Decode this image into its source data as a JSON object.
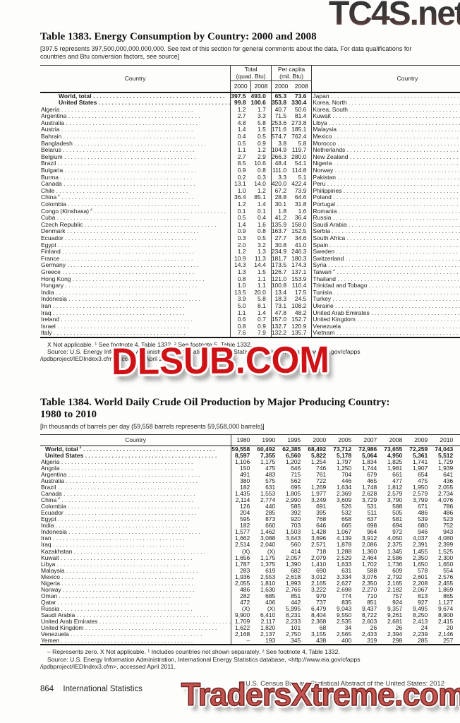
{
  "watermarks": {
    "top": "TC4S.net",
    "middle": "DLSUB.COM",
    "bottom": "TradersXtreme.com",
    "red": "#cf1216",
    "salmon": "#c4544f"
  },
  "t1383": {
    "title": "Table 1383. Energy Consumption by Country: 2000 and 2008",
    "note": "[397.5 represents 397,500,000,000,000,000. See text of this section for general comments about the data. For data qualifications for countries and Btu conversion factors, see source]",
    "headers": {
      "country": "Country",
      "total": [
        "Total",
        "(quad. Btu)"
      ],
      "per_capita": [
        "Per capita",
        "(mil. Btu)"
      ],
      "years": [
        "2000",
        "2008"
      ]
    },
    "left_rows": [
      {
        "n": "World, total",
        "b": true,
        "v": [
          "397.5",
          "493.0",
          "65.3",
          "73.6"
        ]
      },
      {
        "n": "United States",
        "b": true,
        "v": [
          "99.8",
          "100.6",
          "353.8",
          "330.4"
        ]
      },
      {
        "n": "Algeria",
        "v": [
          "1.2",
          "1.7",
          "40.7",
          "50.6"
        ]
      },
      {
        "n": "Argentina",
        "v": [
          "2.7",
          "3.3",
          "71.5",
          "81.4"
        ]
      },
      {
        "n": "Australia",
        "v": [
          "4.8",
          "5.8",
          "253.6",
          "273.8"
        ]
      },
      {
        "n": "Austria",
        "v": [
          "1.4",
          "1.5",
          "171.6",
          "185.1"
        ]
      },
      {
        "n": "Bahrain",
        "v": [
          "0.4",
          "0.5",
          "574.7",
          "762.4"
        ]
      },
      {
        "n": "Bangladesh",
        "v": [
          "0.5",
          "0.9",
          "3.8",
          "5.8"
        ]
      },
      {
        "n": "Belarus",
        "v": [
          "1.1",
          "1.2",
          "104.9",
          "119.7"
        ]
      },
      {
        "n": "Belgium",
        "v": [
          "2.7",
          "2.9",
          "266.3",
          "280.0"
        ]
      },
      {
        "n": "Brazil",
        "v": [
          "8.5",
          "10.6",
          "48.4",
          "54.1"
        ]
      },
      {
        "n": "Bulgaria",
        "v": [
          "0.9",
          "0.8",
          "111.0",
          "114.8"
        ]
      },
      {
        "n": "Burma",
        "v": [
          "0.2",
          "0.3",
          "3.3",
          "5.1"
        ]
      },
      {
        "n": "Canada",
        "v": [
          "13.1",
          "14.0",
          "420.0",
          "422.4"
        ]
      },
      {
        "n": "Chile",
        "v": [
          "1.0",
          "1.2",
          "67.2",
          "73.9"
        ]
      },
      {
        "n": "China",
        "s": "1",
        "v": [
          "36.4",
          "85.1",
          "28.8",
          "64.6"
        ]
      },
      {
        "n": "Colombia",
        "v": [
          "1.2",
          "1.4",
          "30.1",
          "31.8"
        ]
      },
      {
        "n": "Congo (Kinshasa)",
        "s": "2",
        "v": [
          "0.1",
          "0.1",
          "1.8",
          "1.6"
        ]
      },
      {
        "n": "Cuba",
        "v": [
          "0.5",
          "0.4",
          "41.2",
          "36.4"
        ]
      },
      {
        "n": "Czech Republic",
        "v": [
          "1.4",
          "1.6",
          "135.9",
          "158.0"
        ]
      },
      {
        "n": "Denmark",
        "v": [
          "0.9",
          "0.8",
          "163.7",
          "152.5"
        ]
      },
      {
        "n": "Ecuador",
        "v": [
          "0.3",
          "0.5",
          "27.7",
          "34.6"
        ]
      },
      {
        "n": "Egypt",
        "v": [
          "2.0",
          "3.2",
          "30.8",
          "41.0"
        ]
      },
      {
        "n": "Finland",
        "v": [
          "1.2",
          "1.3",
          "234.9",
          "246.3"
        ]
      },
      {
        "n": "France",
        "v": [
          "10.9",
          "11.3",
          "181.7",
          "180.3"
        ]
      },
      {
        "n": "Germany",
        "v": [
          "14.3",
          "14.4",
          "173.5",
          "174.3"
        ]
      },
      {
        "n": "Greece",
        "v": [
          "1.3",
          "1.5",
          "126.7",
          "137.1"
        ]
      },
      {
        "n": "Hong Kong",
        "v": [
          "0.8",
          "1.1",
          "121.0",
          "153.9"
        ]
      },
      {
        "n": "Hungary",
        "v": [
          "1.0",
          "1.1",
          "100.8",
          "110.4"
        ]
      },
      {
        "n": "India",
        "v": [
          "13.5",
          "20.0",
          "13.4",
          "17.5"
        ]
      },
      {
        "n": "Indonesia",
        "v": [
          "3.9",
          "5.8",
          "18.3",
          "24.5"
        ]
      },
      {
        "n": "Iran",
        "v": [
          "5.0",
          "8.1",
          "73.1",
          "108.2"
        ]
      },
      {
        "n": "Iraq",
        "v": [
          "1.1",
          "1.4",
          "47.8",
          "48.2"
        ]
      },
      {
        "n": "Ireland",
        "v": [
          "0.6",
          "0.7",
          "157.0",
          "152.7"
        ]
      },
      {
        "n": "Israel",
        "v": [
          "0.8",
          "0.9",
          "132.7",
          "120.9"
        ]
      },
      {
        "n": "Italy",
        "v": [
          "7.6",
          "7.9",
          "132.2",
          "135.7"
        ]
      }
    ],
    "right_rows": [
      {
        "n": "Japan",
        "v": [
          "22.4",
          "21.9",
          "177.0",
          "171.8"
        ]
      },
      {
        "n": "Korea, North",
        "v": [
          "0.9",
          "0.9",
          "40.4",
          "39.2"
        ]
      },
      {
        "n": "Korea, South",
        "v": [
          "7.8",
          "9.9",
          "167.4",
          "204.3"
        ]
      },
      {
        "n": "Kuwait",
        "v": [
          "0.9",
          "1.2",
          "460.8",
          "459.2"
        ]
      },
      {
        "n": "Libya",
        "v": [
          "0.6",
          "0.8",
          "122.9",
          "126.7"
        ]
      },
      {
        "n": "Malaysia",
        "v": [
          "2.0",
          "2.5",
          "85.4",
          "89.6"
        ]
      },
      {
        "n": "Mexico",
        "v": [
          "6.4",
          "7.3",
          "63.8",
          "66.5"
        ]
      },
      {
        "n": "Morocco",
        "v": [
          "0.4",
          "0.6",
          "15.9",
          "18.1"
        ]
      },
      {
        "n": "Netherlands",
        "v": [
          "3.8",
          "4.1",
          "238.5",
          "248.6"
        ]
      },
      {
        "n": "New Zealand",
        "v": [
          "0.8",
          "0.9",
          "223.2",
          "211.5"
        ]
      },
      {
        "n": "Nigeria",
        "v": [
          "0.8",
          "1.1",
          "6.6",
          "7.4"
        ]
      },
      {
        "n": "Norway",
        "v": [
          "2.0",
          "1.9",
          "436.1",
          "418.4"
        ]
      },
      {
        "n": "Pakistan",
        "v": [
          "1.9",
          "2.5",
          "12.2",
          "13.9"
        ]
      },
      {
        "n": "Peru",
        "v": [
          "0.5",
          "0.7",
          "20.3",
          "23.8"
        ]
      },
      {
        "n": "Philippines",
        "v": [
          "1.3",
          "1.3",
          "15.4",
          "13.5"
        ]
      },
      {
        "n": "Poland",
        "v": [
          "3.6",
          "3.9",
          "93.8",
          "101.0"
        ]
      },
      {
        "n": "Portugal",
        "v": [
          "1.1",
          "1.1",
          "103.6",
          "99.3"
        ]
      },
      {
        "n": "Romania",
        "v": [
          "1.6",
          "1.7",
          "70.7",
          "76.0"
        ]
      },
      {
        "n": "Russia",
        "v": [
          "27.2",
          "30.4",
          "185.5",
          "216.2"
        ]
      },
      {
        "n": "Saudi Arabia",
        "v": [
          "4.9",
          "6.7",
          "227.7",
          "270.0"
        ]
      },
      {
        "n": "Serbia",
        "v": [
          "(X)",
          "0.7",
          "(X)",
          "79.1"
        ]
      },
      {
        "n": "South Africa",
        "v": [
          "4.6",
          "5.7",
          "101.7",
          "117.1"
        ]
      },
      {
        "n": "Spain",
        "v": [
          "5.5",
          "6.5",
          "136.3",
          "141.7"
        ]
      },
      {
        "n": "Sweden",
        "v": [
          "2.3",
          "2.2",
          "254.2",
          "245.3"
        ]
      },
      {
        "n": "Switzerland",
        "v": [
          "1.3",
          "1.3",
          "177.3",
          "173.1"
        ]
      },
      {
        "n": "Syria",
        "v": [
          "0.8",
          "0.8",
          "47.5",
          "39.2"
        ]
      },
      {
        "n": "Taiwan",
        "s": "1",
        "v": [
          "3.8",
          "4.6",
          "171.6",
          "199.0"
        ]
      },
      {
        "n": "Thailand",
        "v": [
          "2.6",
          "4.0",
          "41.5",
          "59.8"
        ]
      },
      {
        "n": "Trinidad and Tobago",
        "v": [
          "0.4",
          "0.9",
          "336.0",
          "720.6"
        ]
      },
      {
        "n": "Tunisia",
        "v": [
          "0.3",
          "0.3",
          "31.5",
          "33.6"
        ]
      },
      {
        "n": "Turkey",
        "v": [
          "3.2",
          "4.3",
          "47.0",
          "56.8"
        ]
      },
      {
        "n": "Ukraine",
        "v": [
          "5.8",
          "6.3",
          "117.4",
          "137.0"
        ]
      },
      {
        "n": "United Arab Emirates",
        "v": [
          "1.9",
          "3.3",
          "579.7",
          "704.9"
        ]
      },
      {
        "n": "United Kingdom",
        "v": [
          "9.7",
          "9.3",
          "163.8",
          "151.0"
        ]
      },
      {
        "n": "Venezuela",
        "v": [
          "2.8",
          "3.2",
          "117.9",
          "120.9"
        ]
      },
      {
        "n": "Vietnam",
        "v": [
          "0.7",
          "1.6",
          "9.3",
          "18.3"
        ]
      }
    ],
    "footnotes": [
      "X Not applicable. ¹ See footnote 4, Table 1332. ² See footnote 5, Table 1332.",
      "Source: U.S. Energy Information Administration, International Energy Statistics database, <http://www.eia.gov/cfapps",
      "/ipdbproject/IEDIndex3.cfm> accessed April 2011."
    ]
  },
  "t1384": {
    "title_line1": "Table 1384. World Daily Crude Oil Production by Major Producing Country:",
    "title_line2": "1980 to 2010",
    "note": "[In thousands of barrels per day (59,558 barrels represents 59,558,000 barrels)]",
    "country_header": "Country",
    "years": [
      "1980",
      "1990",
      "1995",
      "2000",
      "2005",
      "2007",
      "2008",
      "2009",
      "2010"
    ],
    "rows": [
      {
        "n": "World, total",
        "s": "1",
        "b": true,
        "v": [
          "59,558",
          "60,492",
          "62,385",
          "68,492",
          "73,712",
          "72,986",
          "73,655",
          "72,259",
          "74,043"
        ]
      },
      {
        "n": "United States",
        "b": true,
        "v": [
          "8,597",
          "7,355",
          "6,560",
          "5,822",
          "5,178",
          "5,064",
          "4,950",
          "5,361",
          "5,512"
        ]
      },
      {
        "n": "Algeria",
        "v": [
          "1,106",
          "1,175",
          "1,202",
          "1,254",
          "1,797",
          "1,834",
          "1,825",
          "1,741",
          "1,729"
        ]
      },
      {
        "n": "Angola",
        "v": [
          "150",
          "475",
          "646",
          "746",
          "1,250",
          "1,744",
          "1,981",
          "1,907",
          "1,939"
        ]
      },
      {
        "n": "Argentina",
        "v": [
          "491",
          "483",
          "715",
          "761",
          "704",
          "679",
          "661",
          "654",
          "641"
        ]
      },
      {
        "n": "Australia",
        "v": [
          "380",
          "575",
          "562",
          "722",
          "446",
          "465",
          "477",
          "475",
          "436"
        ]
      },
      {
        "n": "Brazil",
        "v": [
          "182",
          "631",
          "695",
          "1,269",
          "1,634",
          "1,748",
          "1,812",
          "1,950",
          "2,055"
        ]
      },
      {
        "n": "Canada",
        "v": [
          "1,435",
          "1,553",
          "1,805",
          "1,977",
          "2,369",
          "2,628",
          "2,579",
          "2,579",
          "2,734"
        ]
      },
      {
        "n": "China",
        "s": "2",
        "v": [
          "2,114",
          "2,774",
          "2,990",
          "3,249",
          "3,609",
          "3,729",
          "3,790",
          "3,799",
          "4,076"
        ]
      },
      {
        "n": "Colombia",
        "v": [
          "126",
          "440",
          "585",
          "691",
          "526",
          "531",
          "588",
          "671",
          "786"
        ]
      },
      {
        "n": "Ecuador",
        "v": [
          "204",
          "285",
          "392",
          "395",
          "532",
          "511",
          "505",
          "486",
          "486"
        ]
      },
      {
        "n": "Egypt",
        "v": [
          "595",
          "873",
          "920",
          "768",
          "658",
          "637",
          "581",
          "539",
          "523"
        ]
      },
      {
        "n": "India",
        "v": [
          "182",
          "660",
          "703",
          "646",
          "665",
          "698",
          "694",
          "680",
          "752"
        ]
      },
      {
        "n": "Indonesia",
        "v": [
          "1,577",
          "1,462",
          "1,503",
          "1,428",
          "1,067",
          "964",
          "972",
          "946",
          "943"
        ]
      },
      {
        "n": "Iran",
        "v": [
          "1,662",
          "3,088",
          "3,643",
          "3,696",
          "4,139",
          "3,912",
          "4,050",
          "4,037",
          "4,080"
        ]
      },
      {
        "n": "Iraq",
        "v": [
          "2,514",
          "2,040",
          "560",
          "2,571",
          "1,878",
          "2,086",
          "2,375",
          "2,391",
          "2,399"
        ]
      },
      {
        "n": "Kazakhstan",
        "v": [
          "(X)",
          "(X)",
          "414",
          "718",
          "1,288",
          "1,360",
          "1,345",
          "1,455",
          "1,525"
        ]
      },
      {
        "n": "Kuwait",
        "v": [
          "1,656",
          "1,175",
          "2,057",
          "2,079",
          "2,529",
          "2,464",
          "2,586",
          "2,350",
          "2,300"
        ]
      },
      {
        "n": "Libya",
        "v": [
          "1,787",
          "1,375",
          "1,390",
          "1,410",
          "1,633",
          "1,702",
          "1,736",
          "1,650",
          "1,650"
        ]
      },
      {
        "n": "Malaysia",
        "v": [
          "283",
          "619",
          "682",
          "690",
          "631",
          "588",
          "609",
          "578",
          "554"
        ]
      },
      {
        "n": "Mexico",
        "v": [
          "1,936",
          "2,553",
          "2,618",
          "3,012",
          "3,334",
          "3,076",
          "2,792",
          "2,601",
          "2,576"
        ]
      },
      {
        "n": "Nigeria",
        "v": [
          "2,055",
          "1,810",
          "1,993",
          "2,165",
          "2,627",
          "2,350",
          "2,165",
          "2,208",
          "2,455"
        ]
      },
      {
        "n": "Norway",
        "v": [
          "486",
          "1,630",
          "2,766",
          "3,222",
          "2,698",
          "2,270",
          "2,182",
          "2,067",
          "1,869"
        ]
      },
      {
        "n": "Oman",
        "v": [
          "282",
          "685",
          "851",
          "970",
          "774",
          "710",
          "757",
          "813",
          "865"
        ]
      },
      {
        "n": "Qatar",
        "v": [
          "472",
          "406",
          "442",
          "737",
          "835",
          "851",
          "924",
          "927",
          "1,127"
        ]
      },
      {
        "n": "Russia",
        "v": [
          "(X)",
          "(X)",
          "5,995",
          "6,479",
          "9,043",
          "9,437",
          "9,357",
          "9,495",
          "9,674"
        ]
      },
      {
        "n": "Saudi Arabia",
        "v": [
          "9,900",
          "6,410",
          "8,231",
          "8,404",
          "9,550",
          "8,722",
          "9,261",
          "8,250",
          "8,900"
        ]
      },
      {
        "n": "United Arab Emirates",
        "v": [
          "1,709",
          "2,117",
          "2,233",
          "2,368",
          "2,535",
          "2,603",
          "2,681",
          "2,413",
          "2,415"
        ]
      },
      {
        "n": "United Kingdom",
        "v": [
          "1,622",
          "1,820",
          "101",
          "68",
          "34",
          "26",
          "26",
          "24",
          "20"
        ]
      },
      {
        "n": "Venezuela",
        "v": [
          "2,168",
          "2,137",
          "2,750",
          "3,155",
          "2,565",
          "2,433",
          "2,394",
          "2,239",
          "2,146"
        ]
      },
      {
        "n": "Yemen",
        "v": [
          "–",
          "193",
          "345",
          "438",
          "400",
          "319",
          "298",
          "285",
          "257"
        ]
      }
    ],
    "footnotes": [
      "– Represents zero. X Not applicable. ¹ Includes countries not shown separately. ² See footnote 4, Table 1332.",
      "Source: U.S. Energy Information Administration, International Energy Statistics database, <http://www.eia.gov/cfapps",
      "/ipdbproject/IEDIndex3.cfm>, accessed April 2011."
    ]
  },
  "footer": {
    "page_number": "864",
    "section": "International Statistics",
    "source": "U.S. Census Bureau, Statistical Abstract of the United States: 2012"
  }
}
